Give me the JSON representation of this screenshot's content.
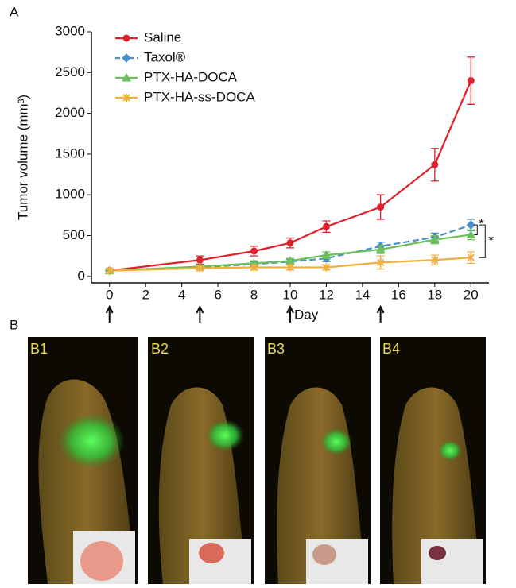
{
  "figure": {
    "panel_a_label": "A",
    "panel_b_label": "B",
    "panel_b_labels": [
      "B1",
      "B2",
      "B3",
      "B4"
    ]
  },
  "chart_data": {
    "type": "line",
    "ylabel": "Tumor volume (mm³)",
    "xlabel": "Day",
    "x": [
      0,
      5,
      8,
      10,
      12,
      15,
      18,
      20
    ],
    "series": [
      {
        "name": "Saline",
        "color": "#e0202a",
        "marker": "circle",
        "dash": false,
        "values": [
          70,
          200,
          310,
          410,
          610,
          850,
          1370,
          2400
        ],
        "errors": [
          20,
          50,
          60,
          60,
          70,
          150,
          200,
          290
        ]
      },
      {
        "name": "Taxol®",
        "color": "#4a90c8",
        "marker": "diamond",
        "dash": true,
        "values": [
          70,
          110,
          150,
          180,
          220,
          370,
          480,
          630
        ],
        "errors": [
          20,
          20,
          30,
          30,
          40,
          50,
          50,
          70
        ]
      },
      {
        "name": "PTX-HA-DOCA",
        "color": "#6cbf5a",
        "marker": "triangle",
        "dash": false,
        "values": [
          70,
          120,
          160,
          190,
          260,
          330,
          450,
          510
        ],
        "errors": [
          20,
          20,
          30,
          30,
          40,
          50,
          50,
          60
        ]
      },
      {
        "name": "PTX-HA-ss-DOCA",
        "color": "#f0b040",
        "marker": "star",
        "dash": false,
        "values": [
          70,
          100,
          110,
          110,
          110,
          170,
          200,
          230
        ],
        "errors": [
          20,
          20,
          30,
          30,
          30,
          80,
          60,
          70
        ]
      }
    ],
    "xlim": [
      -1,
      21
    ],
    "xticks": [
      0,
      2,
      4,
      6,
      8,
      10,
      12,
      14,
      16,
      18,
      20
    ],
    "ylim": [
      -80,
      3000
    ],
    "yticks": [
      0,
      500,
      1000,
      1500,
      2000,
      2500,
      3000
    ],
    "arrow_days": [
      0,
      5,
      10,
      15
    ],
    "annotations": [
      "*",
      "*"
    ],
    "legend": "upper left"
  }
}
